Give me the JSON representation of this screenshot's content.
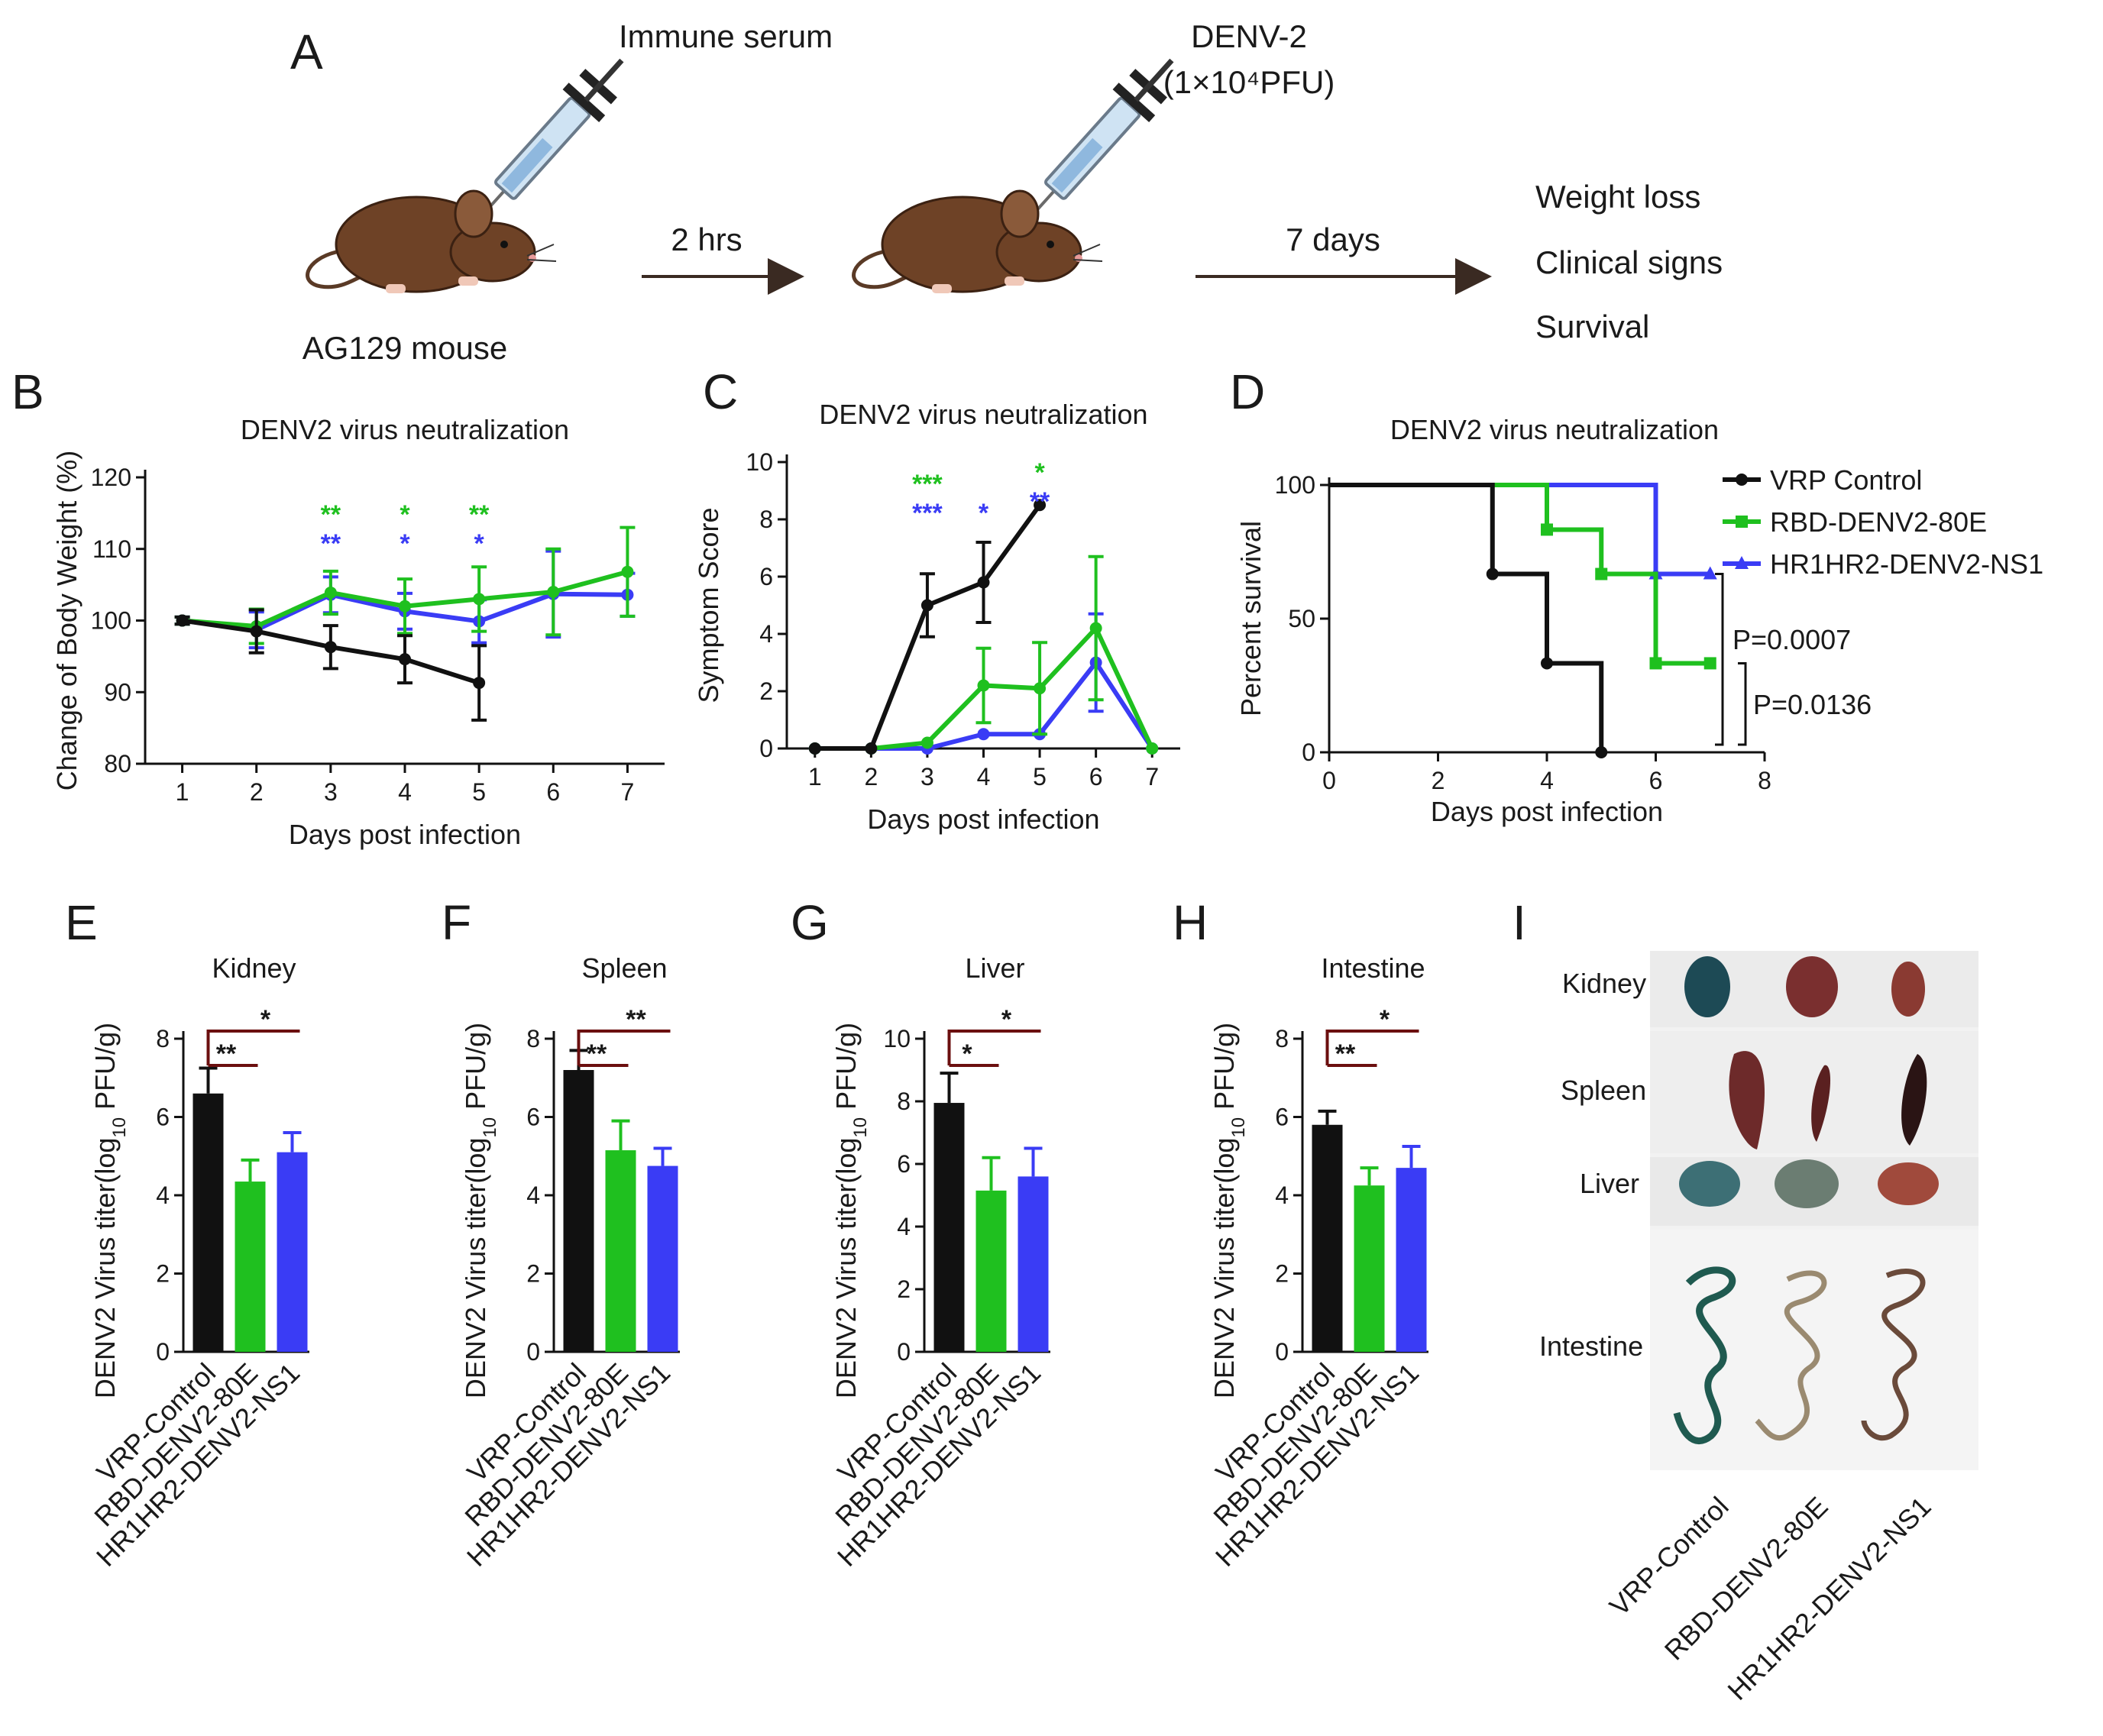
{
  "panel_letters": [
    "A",
    "B",
    "C",
    "D",
    "E",
    "F",
    "G",
    "H",
    "I"
  ],
  "schematic": {
    "serum_label": "Immune serum",
    "virus_label": "DENV-2",
    "dose_label": "(1×10⁴PFU)",
    "step1_label": "2 hrs",
    "step2_label": "7 days",
    "mouse_label": "AG129 mouse",
    "outcomes": [
      "Weight loss",
      "Clinical signs",
      "Survival"
    ]
  },
  "colors": {
    "vrp": "#111111",
    "rbd": "#1fc01f",
    "hr": "#3a3cf5",
    "bracket": "#6b0f0f"
  },
  "groups": [
    "VRP Control",
    "RBD-DENV2-80E",
    "HR1HR2-DENV2-NS1"
  ],
  "bar_groups": [
    "VRP-Control",
    "RBD-DENV2-80E",
    "HR1HR2-DENV2-NS1"
  ],
  "organ_photo": {
    "rows": [
      "Kidney",
      "Spleen",
      "Liver",
      "Intestine"
    ],
    "columns": [
      "VRP-Control",
      "RBD-DENV2-80E",
      "HR1HR2-DENV2-NS1"
    ]
  },
  "chart_data": [
    {
      "id": "B",
      "type": "line",
      "title": "DENV2 virus neutralization",
      "xlabel": "Days post infection",
      "ylabel": "Change of Body Weight (%)",
      "xlim": [
        0.5,
        7.5
      ],
      "ylim": [
        80,
        120
      ],
      "xticks": [
        1,
        2,
        3,
        4,
        5,
        6,
        7
      ],
      "yticks": [
        80,
        90,
        100,
        110,
        120
      ],
      "series": [
        {
          "name": "VRP Control",
          "x": [
            1,
            2,
            3,
            4,
            5
          ],
          "y": [
            100,
            98.5,
            96.3,
            94.6,
            91.3
          ],
          "err": [
            0.5,
            3,
            3,
            3.3,
            5.2
          ]
        },
        {
          "name": "RBD-DENV2-80E",
          "x": [
            1,
            2,
            3,
            4,
            5,
            6,
            7
          ],
          "y": [
            100,
            99.2,
            103.9,
            102,
            103,
            104,
            106.8
          ],
          "err": [
            0.5,
            2.4,
            3,
            3.8,
            4.5,
            6,
            6.2
          ]
        },
        {
          "name": "HR1HR2-DENV2-NS1",
          "x": [
            1,
            2,
            3,
            4,
            5,
            6,
            7
          ],
          "y": [
            100,
            98.7,
            103.6,
            101.3,
            99.9,
            103.7,
            103.6
          ],
          "err": [
            0.5,
            2.5,
            2.5,
            2.5,
            3,
            6,
            3
          ]
        }
      ],
      "significance": [
        {
          "x": 3,
          "green": "**",
          "blue": "**"
        },
        {
          "x": 4,
          "green": "*",
          "blue": "*"
        },
        {
          "x": 5,
          "green": "**",
          "blue": "*"
        }
      ]
    },
    {
      "id": "C",
      "type": "line",
      "title": "DENV2 virus neutralization",
      "xlabel": "Days post infection",
      "ylabel": "Symptom Score",
      "xlim": [
        0.5,
        7.5
      ],
      "ylim": [
        0,
        10
      ],
      "xticks": [
        1,
        2,
        3,
        4,
        5,
        6,
        7
      ],
      "yticks": [
        0,
        2,
        4,
        6,
        8,
        10
      ],
      "series": [
        {
          "name": "VRP Control",
          "x": [
            1,
            2,
            3,
            4,
            5
          ],
          "y": [
            0,
            0,
            5,
            5.8,
            8.5
          ],
          "err": [
            0,
            0,
            1.1,
            1.4,
            0
          ]
        },
        {
          "name": "RBD-DENV2-80E",
          "x": [
            1,
            2,
            3,
            4,
            5,
            6,
            7
          ],
          "y": [
            0,
            0,
            0.2,
            2.2,
            2.1,
            4.2,
            0
          ],
          "err": [
            0,
            0,
            0,
            1.3,
            1.6,
            2.5,
            0
          ]
        },
        {
          "name": "HR1HR2-DENV2-NS1",
          "x": [
            1,
            2,
            3,
            4,
            5,
            6,
            7
          ],
          "y": [
            0,
            0,
            0,
            0.5,
            0.5,
            3,
            0
          ],
          "err": [
            0,
            0,
            0,
            0,
            0,
            1.7,
            0
          ]
        }
      ],
      "significance": [
        {
          "x": 3,
          "green": "***",
          "blue": "***"
        },
        {
          "x": 4,
          "green": "",
          "blue": "*"
        },
        {
          "x": 5,
          "green": "*",
          "blue": "**"
        }
      ]
    },
    {
      "id": "D",
      "type": "line",
      "title": "DENV2 virus neutralization",
      "xlabel": "Days post infection",
      "ylabel": "Percent survival",
      "xlim": [
        0,
        8
      ],
      "ylim": [
        0,
        100
      ],
      "xticks": [
        0,
        2,
        4,
        6,
        8
      ],
      "yticks": [
        0,
        50,
        100
      ],
      "series": [
        {
          "name": "VRP Control",
          "x": [
            0,
            3,
            4,
            5
          ],
          "y": [
            100,
            66.7,
            33.3,
            0
          ]
        },
        {
          "name": "RBD-DENV2-80E",
          "x": [
            0,
            4,
            5,
            6,
            7
          ],
          "y": [
            100,
            83.3,
            66.7,
            33.3,
            33.3
          ]
        },
        {
          "name": "HR1HR2-DENV2-NS1",
          "x": [
            0,
            6,
            7
          ],
          "y": [
            100,
            66.7,
            66.7
          ]
        }
      ],
      "p_values": [
        "P=0.0007",
        "P=0.0136"
      ],
      "legend": [
        "VRP Control",
        "RBD-DENV2-80E",
        "HR1HR2-DENV2-NS1"
      ]
    },
    {
      "id": "E",
      "type": "bar",
      "title": "Kidney",
      "ylabel": "DENV2 Virus titer(log10 PFU/g)",
      "ylim": [
        0,
        8
      ],
      "yticks": [
        0,
        2,
        4,
        6,
        8
      ],
      "categories": [
        "VRP-Control",
        "RBD-DENV2-80E",
        "HR1HR2-DENV2-NS1"
      ],
      "values": [
        6.6,
        4.35,
        5.1
      ],
      "err": [
        0.65,
        0.55,
        0.5
      ],
      "brackets": [
        {
          "to": 1,
          "label": "**"
        },
        {
          "to": 2,
          "label": "*"
        }
      ]
    },
    {
      "id": "F",
      "type": "bar",
      "title": "Spleen",
      "ylabel": "DENV2 Virus titer(log10 PFU/g)",
      "ylim": [
        0,
        8
      ],
      "yticks": [
        0,
        2,
        4,
        6,
        8
      ],
      "categories": [
        "VRP-Control",
        "RBD-DENV2-80E",
        "HR1HR2-DENV2-NS1"
      ],
      "values": [
        7.2,
        5.15,
        4.75
      ],
      "err": [
        0.5,
        0.75,
        0.45
      ],
      "brackets": [
        {
          "to": 1,
          "label": "**"
        },
        {
          "to": 2,
          "label": "**"
        }
      ]
    },
    {
      "id": "G",
      "type": "bar",
      "title": "Liver",
      "ylabel": "DENV2 Virus titer(log10 PFU/g)",
      "ylim": [
        0,
        10
      ],
      "yticks": [
        0,
        2,
        4,
        6,
        8,
        10
      ],
      "categories": [
        "VRP-Control",
        "RBD-DENV2-80E",
        "HR1HR2-DENV2-NS1"
      ],
      "values": [
        7.95,
        5.15,
        5.6
      ],
      "err": [
        0.95,
        1.05,
        0.9
      ],
      "brackets": [
        {
          "to": 1,
          "label": "*"
        },
        {
          "to": 2,
          "label": "*"
        }
      ]
    },
    {
      "id": "H",
      "type": "bar",
      "title": "Intestine",
      "ylabel": "DENV2 Virus titer(log10 PFU/g)",
      "ylim": [
        0,
        8
      ],
      "yticks": [
        0,
        2,
        4,
        6,
        8
      ],
      "categories": [
        "VRP-Control",
        "RBD-DENV2-80E",
        "HR1HR2-DENV2-NS1"
      ],
      "values": [
        5.8,
        4.25,
        4.7
      ],
      "err": [
        0.35,
        0.45,
        0.55
      ],
      "brackets": [
        {
          "to": 1,
          "label": "**"
        },
        {
          "to": 2,
          "label": "*"
        }
      ]
    }
  ]
}
